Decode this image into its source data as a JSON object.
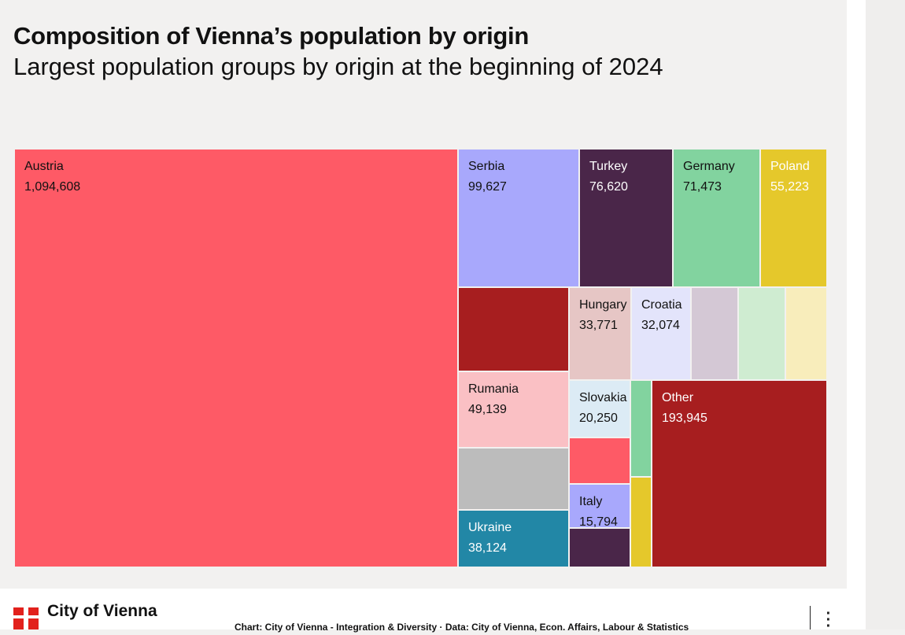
{
  "header": {
    "title": "Composition of Vienna’s population by origin",
    "subtitle": "Largest population groups by origin at the beginning of 2024"
  },
  "chart_data": {
    "type": "treemap",
    "title": "Composition of Vienna’s population by origin",
    "subtitle": "Largest population groups by origin at the beginning of 2024",
    "items": [
      {
        "label": "Austria",
        "value": 1094608,
        "value_label": "1,094,608",
        "color": "#fe5a66"
      },
      {
        "label": "Serbia",
        "value": 99627,
        "value_label": "99,627",
        "color": "#a8a8fc"
      },
      {
        "label": "Turkey",
        "value": 76620,
        "value_label": "76,620",
        "color": "#4a2649"
      },
      {
        "label": "Germany",
        "value": 71473,
        "value_label": "71,473",
        "color": "#82d39f"
      },
      {
        "label": "Poland",
        "value": 55223,
        "value_label": "55,223",
        "color": "#e5c82b"
      },
      {
        "label": "",
        "value": 52000,
        "value_label": "",
        "color": "#a71e1f"
      },
      {
        "label": "Rumania",
        "value": 49139,
        "value_label": "49,139",
        "color": "#fac0c4"
      },
      {
        "label": "",
        "value": 40000,
        "value_label": "",
        "color": "#bcbcbc"
      },
      {
        "label": "Ukraine",
        "value": 38124,
        "value_label": "38,124",
        "color": "#2287a6"
      },
      {
        "label": "Hungary",
        "value": 33771,
        "value_label": "33,771",
        "color": "#e6c6c5"
      },
      {
        "label": "Croatia",
        "value": 32074,
        "value_label": "32,074",
        "color": "#e3e4fb"
      },
      {
        "label": "",
        "value": 25000,
        "value_label": "",
        "color": "#d4c8d5"
      },
      {
        "label": "",
        "value": 24000,
        "value_label": "",
        "color": "#cfecd1"
      },
      {
        "label": "",
        "value": 23000,
        "value_label": "",
        "color": "#f8edbb"
      },
      {
        "label": "Slovakia",
        "value": 20250,
        "value_label": "20,250",
        "color": "#dcebf5"
      },
      {
        "label": "",
        "value": 19000,
        "value_label": "",
        "color": "#fe5a66"
      },
      {
        "label": "Italy",
        "value": 15794,
        "value_label": "15,794",
        "color": "#a8a8fc"
      },
      {
        "label": "",
        "value": 15000,
        "value_label": "",
        "color": "#4a2649"
      },
      {
        "label": "",
        "value": 14000,
        "value_label": "",
        "color": "#82d39f"
      },
      {
        "label": "",
        "value": 13500,
        "value_label": "",
        "color": "#e5c82b"
      },
      {
        "label": "Other",
        "value": 193945,
        "value_label": "193,945",
        "color": "#a71e1f"
      }
    ],
    "light_text_labels": [
      "Turkey",
      "Poland",
      "Ukraine",
      "Other"
    ]
  },
  "footer": {
    "logo_text": "City of Vienna",
    "credit": "Chart: City of Vienna - Integration & Diversity · Data: City of Vienna, Econ. Affairs, Labour & Statistics",
    "menu_icon": "more-vertical-icon"
  }
}
